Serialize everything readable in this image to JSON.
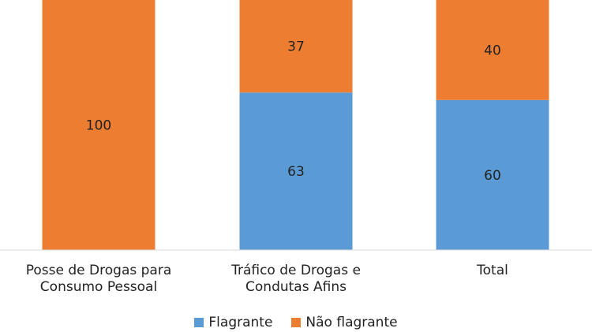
{
  "chart_data": {
    "type": "bar",
    "stacked": true,
    "categories": [
      [
        "Posse de Drogas para",
        "Consumo Pessoal"
      ],
      [
        "Tráfico de Drogas e",
        "Condutas Afins"
      ],
      [
        "Total"
      ]
    ],
    "series": [
      {
        "name": "Flagrante",
        "color": "#5B9BD5",
        "values": [
          0,
          63,
          60
        ]
      },
      {
        "name": "Não flagrante",
        "color": "#ED7D31",
        "values": [
          100,
          37,
          40
        ]
      }
    ],
    "data_labels": [
      [
        "",
        "63",
        "60"
      ],
      [
        "100",
        "37",
        "40"
      ]
    ],
    "ylim": [
      0,
      100
    ],
    "legend_position": "bottom",
    "grid": false
  }
}
